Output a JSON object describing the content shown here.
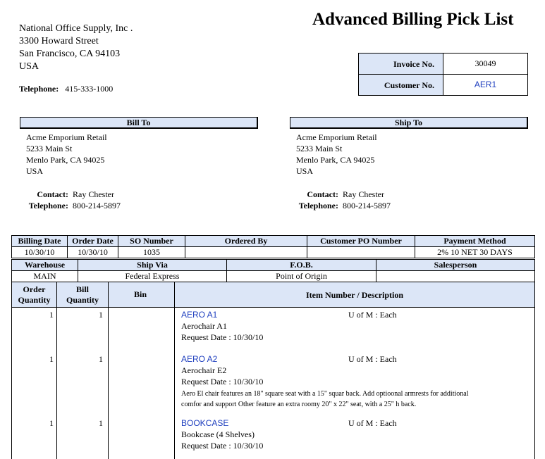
{
  "title": "Advanced Billing Pick List",
  "company": {
    "lines": [
      "National Office Supply, Inc .",
      "3300  Howard Street",
      "San Francisco, CA 94103",
      "USA"
    ],
    "telephone_label": "Telephone:",
    "telephone": "415-333-1000"
  },
  "invoice": {
    "invoice_label": "Invoice No.",
    "invoice_no": "30049",
    "customer_label": "Customer No.",
    "customer_no": "AER1"
  },
  "bill_to": {
    "header": "Bill To",
    "lines": [
      "Acme Emporium Retail",
      "5233  Main St",
      "Menlo Park, CA  94025",
      "USA"
    ],
    "contact_label": "Contact:",
    "contact": "Ray Chester",
    "telephone_label": "Telephone:",
    "telephone": "800-214-5897"
  },
  "ship_to": {
    "header": "Ship To",
    "lines": [
      "Acme Emporium Retail",
      "5233  Main St",
      "Menlo Park, CA  94025",
      "USA"
    ],
    "contact_label": "Contact:",
    "contact": "Ray Chester",
    "telephone_label": "Telephone:",
    "telephone": "800-214-5897"
  },
  "order_info": {
    "headers": [
      "Billing Date",
      "Order Date",
      "SO Number",
      "Ordered By",
      "Customer PO Number",
      "Payment Method"
    ],
    "billing_date": "10/30/10",
    "order_date": "10/30/10",
    "so_number": "1035",
    "payment_method": "2% 10 NET 30 DAYS",
    "headers2": [
      "Warehouse",
      "Ship Via",
      "F.O.B.",
      "Salesperson"
    ],
    "warehouse": "MAIN",
    "ship_via": "Federal Express",
    "fob": "Point of Origin"
  },
  "items": {
    "headers": [
      "Order Quantity",
      "Bill Quantity",
      "Bin",
      "Item Number / Description"
    ],
    "rows": [
      {
        "order_qty": 1,
        "bill_qty": 1,
        "item": "AERO A1",
        "uom": "U of M : Each",
        "description": "Aerochair A1",
        "request_date": "Request Date : 10/30/10"
      },
      {
        "order_qty": 1,
        "bill_qty": 1,
        "item": "AERO A2",
        "uom": "U of M : Each",
        "description": "Aerochair E2",
        "request_date": "Request Date : 10/30/10",
        "notes": "Aero El chair features an 18\" square seat with a 15\" squar back.  Add optioonal armrests for additional comfor and support  Other feature an extra roomy 20\" x 22\" seat, with a 25\" h back."
      },
      {
        "order_qty": 1,
        "bill_qty": 1,
        "item": "BOOKCASE",
        "uom": "U of M : Each",
        "description": "Bookcase (4 Shelves)",
        "request_date": "Request Date : 10/30/10"
      }
    ]
  }
}
